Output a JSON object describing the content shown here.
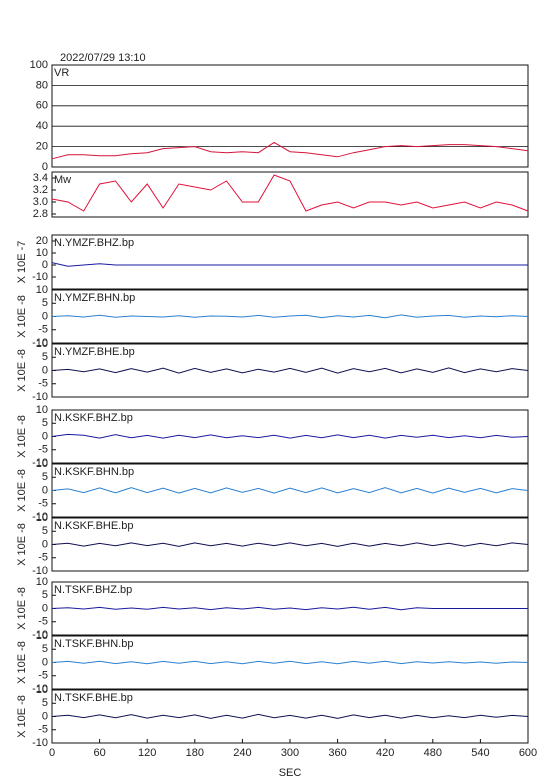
{
  "chart_data": [
    {
      "type": "line",
      "title": "2022/07/29 13:10",
      "label": "VR",
      "color": "#d4143c",
      "grid": true,
      "x": [
        0,
        20,
        40,
        60,
        80,
        100,
        120,
        140,
        160,
        180,
        200,
        220,
        240,
        260,
        280,
        300,
        320,
        340,
        360,
        380,
        400,
        420,
        440,
        460,
        480,
        500,
        520,
        540,
        560,
        580,
        600
      ],
      "values": [
        8,
        12,
        12,
        11,
        11,
        13,
        14,
        18,
        19,
        20,
        15,
        14,
        15,
        14,
        24,
        15,
        14,
        12,
        10,
        14,
        17,
        20,
        21,
        20,
        21,
        22,
        22,
        21,
        20,
        18,
        16
      ],
      "xlim": [
        0,
        600
      ],
      "ylim": [
        0,
        100
      ],
      "yticks": [
        0,
        20,
        40,
        60,
        80,
        100
      ]
    },
    {
      "type": "line",
      "label": "Mw",
      "color": "#e0103a",
      "x": [
        0,
        20,
        40,
        60,
        80,
        100,
        120,
        140,
        160,
        180,
        200,
        220,
        240,
        260,
        280,
        300,
        320,
        340,
        360,
        380,
        400,
        420,
        440,
        460,
        480,
        500,
        520,
        540,
        560,
        580,
        600
      ],
      "values": [
        3.05,
        3.0,
        2.85,
        3.3,
        3.35,
        3.0,
        3.3,
        2.9,
        3.3,
        3.25,
        3.2,
        3.35,
        3.0,
        3.0,
        3.45,
        3.35,
        2.85,
        2.95,
        3.0,
        2.9,
        3.0,
        3.0,
        2.95,
        3.0,
        2.9,
        2.95,
        3.0,
        2.9,
        3.0,
        2.95,
        2.85
      ],
      "xlim": [
        0,
        600
      ],
      "ylim": [
        2.75,
        3.5
      ],
      "yticks": [
        2.8,
        {
          "value": 3,
          "label": "3.0"
        },
        3.2,
        3.4
      ]
    },
    {
      "type": "line",
      "label": "N.YMZF.BHZ.bp",
      "ylabel": "X 10E -7",
      "color": "#1a1aa0",
      "x": [
        0,
        20,
        40,
        60,
        80,
        100,
        120,
        140,
        160,
        180,
        200,
        220,
        240,
        260,
        280,
        300,
        320,
        340,
        360,
        380,
        400,
        420,
        440,
        460,
        480,
        500,
        520,
        540,
        560,
        580,
        600
      ],
      "values": [
        2,
        -1,
        0,
        1,
        0,
        0,
        0,
        0,
        0,
        0,
        0,
        0,
        0,
        0,
        0,
        0,
        0,
        0,
        0,
        0,
        0,
        0,
        0,
        0,
        0,
        0,
        0,
        0,
        0,
        0,
        0
      ],
      "xlim": [
        0,
        600
      ],
      "ylim": [
        -20,
        25
      ],
      "yticks": [
        -10,
        0,
        10,
        20
      ]
    },
    {
      "type": "line",
      "label": "N.YMZF.BHN.bp",
      "ylabel": "X 10E -8",
      "color": "#2a80d0",
      "x": [
        0,
        20,
        40,
        60,
        80,
        100,
        120,
        140,
        160,
        180,
        200,
        220,
        240,
        260,
        280,
        300,
        320,
        340,
        360,
        380,
        400,
        420,
        440,
        460,
        480,
        500,
        520,
        540,
        560,
        580,
        600
      ],
      "values": [
        0,
        0.3,
        -0.2,
        0.5,
        -0.3,
        0.2,
        0,
        -0.2,
        0.3,
        -0.3,
        0.2,
        0.1,
        -0.2,
        0.4,
        -0.3,
        0.2,
        0.5,
        -0.4,
        0.3,
        -0.2,
        0.4,
        -0.5,
        0.6,
        -0.3,
        0.2,
        0.4,
        -0.3,
        0.2,
        -0.1,
        0.3,
        0
      ],
      "xlim": [
        0,
        600
      ],
      "ylim": [
        -10,
        10
      ],
      "yticks": [
        -10,
        -5,
        0,
        5,
        10
      ]
    },
    {
      "type": "line",
      "label": "N.YMZF.BHE.bp",
      "ylabel": "X 10E -8",
      "color": "#101050",
      "x": [
        0,
        20,
        40,
        60,
        80,
        100,
        120,
        140,
        160,
        180,
        200,
        220,
        240,
        260,
        280,
        300,
        320,
        340,
        360,
        380,
        400,
        420,
        440,
        460,
        480,
        500,
        520,
        540,
        560,
        580,
        600
      ],
      "values": [
        0,
        0.4,
        -0.5,
        0.6,
        -0.8,
        0.7,
        -0.6,
        0.9,
        -1,
        0.8,
        -0.7,
        0.6,
        -0.9,
        0.5,
        -0.6,
        0.8,
        -0.7,
        0.9,
        -1,
        0.7,
        -0.5,
        0.8,
        -0.9,
        0.6,
        -0.7,
        1,
        -0.8,
        0.6,
        -0.5,
        0.7,
        0
      ],
      "xlim": [
        0,
        600
      ],
      "ylim": [
        -10,
        10
      ],
      "yticks": [
        -10,
        -5,
        0,
        5,
        10
      ]
    },
    {
      "type": "line",
      "label": "N.KSKF.BHZ.bp",
      "ylabel": "X 10E -8",
      "color": "#1a1aa0",
      "x": [
        0,
        20,
        40,
        60,
        80,
        100,
        120,
        140,
        160,
        180,
        200,
        220,
        240,
        260,
        280,
        300,
        320,
        340,
        360,
        380,
        400,
        420,
        440,
        460,
        480,
        500,
        520,
        540,
        560,
        580,
        600
      ],
      "values": [
        0,
        0.8,
        0.5,
        -0.6,
        0.7,
        -0.5,
        0.4,
        -0.6,
        0.5,
        -0.4,
        0.6,
        -0.5,
        0.3,
        -0.4,
        0.5,
        -0.6,
        0.4,
        -0.5,
        0.6,
        -0.4,
        0.5,
        -0.6,
        0.4,
        -0.3,
        0.5,
        -0.4,
        0.3,
        -0.5,
        0.4,
        -0.3,
        0
      ],
      "xlim": [
        0,
        600
      ],
      "ylim": [
        -10,
        10
      ],
      "yticks": [
        -10,
        -5,
        0,
        5,
        10
      ]
    },
    {
      "type": "line",
      "label": "N.KSKF.BHN.bp",
      "ylabel": "X 10E -8",
      "color": "#2a80d0",
      "x": [
        0,
        20,
        40,
        60,
        80,
        100,
        120,
        140,
        160,
        180,
        200,
        220,
        240,
        260,
        280,
        300,
        320,
        340,
        360,
        380,
        400,
        420,
        440,
        460,
        480,
        500,
        520,
        540,
        560,
        580,
        600
      ],
      "values": [
        0,
        0.6,
        -0.8,
        1,
        -0.9,
        1.1,
        -0.8,
        0.9,
        -1,
        0.8,
        -0.9,
        1,
        -0.7,
        0.8,
        -1,
        0.9,
        -0.8,
        1,
        -0.9,
        0.7,
        -0.8,
        1.1,
        -0.9,
        0.8,
        -1,
        0.9,
        -0.7,
        0.8,
        -0.9,
        0.7,
        0
      ],
      "xlim": [
        0,
        600
      ],
      "ylim": [
        -10,
        10
      ],
      "yticks": [
        -10,
        -5,
        0,
        5,
        10
      ]
    },
    {
      "type": "line",
      "label": "N.KSKF.BHE.bp",
      "ylabel": "X 10E -8",
      "color": "#101050",
      "x": [
        0,
        20,
        40,
        60,
        80,
        100,
        120,
        140,
        160,
        180,
        200,
        220,
        240,
        260,
        280,
        300,
        320,
        340,
        360,
        380,
        400,
        420,
        440,
        460,
        480,
        500,
        520,
        540,
        560,
        580,
        600
      ],
      "values": [
        0,
        0.5,
        -0.6,
        0.4,
        -0.5,
        0.6,
        -0.4,
        0.5,
        -0.7,
        0.6,
        -0.5,
        0.4,
        -0.6,
        0.5,
        -0.4,
        0.6,
        -0.5,
        0.4,
        -0.7,
        0.5,
        -0.6,
        0.4,
        -0.5,
        0.6,
        -0.4,
        0.5,
        -0.6,
        0.4,
        -0.5,
        0.6,
        0
      ],
      "xlim": [
        0,
        600
      ],
      "ylim": [
        -10,
        10
      ],
      "yticks": [
        -10,
        -5,
        0,
        5,
        10
      ]
    },
    {
      "type": "line",
      "label": "N.TSKF.BHZ.bp",
      "ylabel": "X 10E -8",
      "color": "#1a1aa0",
      "x": [
        0,
        20,
        40,
        60,
        80,
        100,
        120,
        140,
        160,
        180,
        200,
        220,
        240,
        260,
        280,
        300,
        320,
        340,
        360,
        380,
        400,
        420,
        440,
        460,
        480,
        500,
        520,
        540,
        560,
        580,
        600
      ],
      "values": [
        0,
        0.3,
        -0.2,
        0.4,
        -0.3,
        0.2,
        -0.3,
        0.4,
        -0.2,
        0.3,
        -0.4,
        0.3,
        -0.2,
        0.4,
        -0.3,
        0.2,
        -0.4,
        0.3,
        -0.2,
        0.5,
        -0.3,
        0.4,
        -0.5,
        0.3,
        0,
        0,
        0,
        0,
        0,
        0,
        0
      ],
      "xlim": [
        0,
        600
      ],
      "ylim": [
        -10,
        10
      ],
      "yticks": [
        -10,
        -5,
        0,
        5,
        10
      ]
    },
    {
      "type": "line",
      "label": "N.TSKF.BHN.bp",
      "ylabel": "X 10E -8",
      "color": "#2a80d0",
      "x": [
        0,
        20,
        40,
        60,
        80,
        100,
        120,
        140,
        160,
        180,
        200,
        220,
        240,
        260,
        280,
        300,
        320,
        340,
        360,
        380,
        400,
        420,
        440,
        460,
        480,
        500,
        520,
        540,
        560,
        580,
        600
      ],
      "values": [
        0,
        0.4,
        -0.3,
        0.5,
        -0.4,
        0.3,
        -0.5,
        0.4,
        -0.3,
        0.5,
        -0.4,
        0.3,
        -0.5,
        0.4,
        -0.3,
        0.5,
        -0.4,
        0.3,
        -0.5,
        0.4,
        -0.3,
        0.5,
        -0.4,
        0.3,
        -0.2,
        0.3,
        -0.2,
        0.2,
        -0.3,
        0.2,
        0
      ],
      "xlim": [
        0,
        600
      ],
      "ylim": [
        -10,
        10
      ],
      "yticks": [
        -10,
        -5,
        0,
        5,
        10
      ]
    },
    {
      "type": "line",
      "label": "N.TSKF.BHE.bp",
      "ylabel": "X 10E -8",
      "color": "#101050",
      "x": [
        0,
        20,
        40,
        60,
        80,
        100,
        120,
        140,
        160,
        180,
        200,
        220,
        240,
        260,
        280,
        300,
        320,
        340,
        360,
        380,
        400,
        420,
        440,
        460,
        480,
        500,
        520,
        540,
        560,
        580,
        600
      ],
      "values": [
        0,
        0.5,
        -0.4,
        0.6,
        -0.5,
        0.7,
        -0.6,
        0.5,
        -0.4,
        0.6,
        -0.7,
        0.5,
        -0.6,
        0.8,
        -0.5,
        0.4,
        -0.6,
        0.5,
        -0.7,
        0.6,
        -0.4,
        0.5,
        -0.6,
        0.4,
        -0.5,
        0.3,
        -0.4,
        0.5,
        -0.3,
        0.4,
        0
      ],
      "xlim": [
        0,
        600
      ],
      "ylim": [
        -10,
        10
      ],
      "yticks": [
        -10,
        -5,
        0,
        5,
        10
      ],
      "xticks": [
        0,
        60,
        120,
        180,
        240,
        300,
        360,
        420,
        480,
        540,
        600
      ],
      "xlabel": "SEC"
    }
  ]
}
